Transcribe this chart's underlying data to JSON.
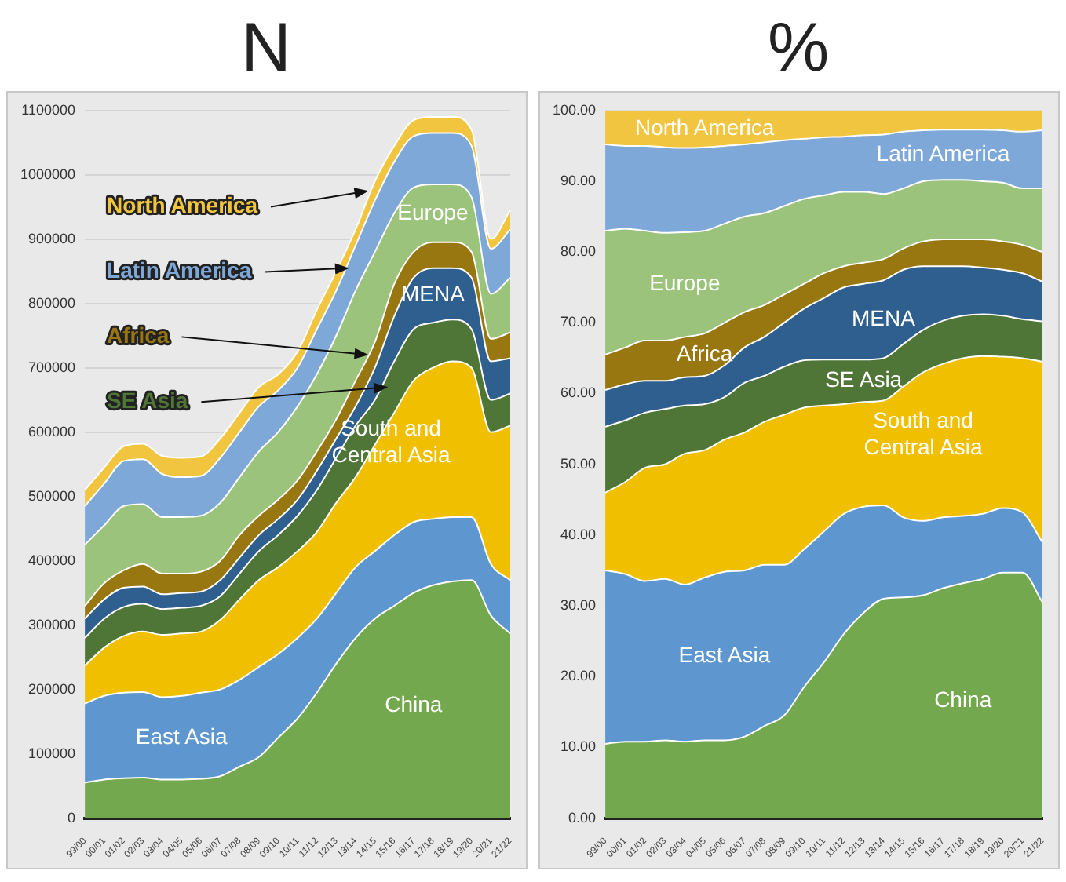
{
  "chart_data": [
    {
      "type": "area",
      "title": "N",
      "stacked": true,
      "grid": "y",
      "categories": [
        "99/00",
        "00/01",
        "01/02",
        "02/03",
        "03/04",
        "04/05",
        "05/06",
        "06/07",
        "07/08",
        "08/09",
        "09/10",
        "10/11",
        "11/12",
        "12/13",
        "13/14",
        "14/15",
        "15/16",
        "16/17",
        "17/18",
        "18/19",
        "19/20",
        "20/21",
        "21/22"
      ],
      "ylim": [
        0,
        1100000
      ],
      "yticks": [
        0,
        100000,
        200000,
        300000,
        400000,
        500000,
        600000,
        700000,
        800000,
        900000,
        1000000,
        1100000
      ],
      "series": [
        {
          "name": "China",
          "color": "#74a84f",
          "values": [
            55000,
            60000,
            62000,
            63000,
            60000,
            60000,
            61000,
            65000,
            80000,
            95000,
            125000,
            155000,
            195000,
            240000,
            280000,
            310000,
            330000,
            350000,
            362000,
            368000,
            370000,
            315000,
            287000
          ]
        },
        {
          "name": "East Asia",
          "color": "#5e97cf",
          "values": [
            123000,
            130000,
            133000,
            133000,
            128000,
            130000,
            134000,
            135000,
            135000,
            140000,
            130000,
            125000,
            115000,
            110000,
            110000,
            105000,
            110000,
            110000,
            103000,
            100000,
            98000,
            80000,
            83000
          ]
        },
        {
          "name": "South and Central Asia",
          "color": "#f0bf00",
          "values": [
            59000,
            75000,
            88000,
            94000,
            97000,
            97000,
            95000,
            108000,
            125000,
            135000,
            135000,
            135000,
            135000,
            140000,
            140000,
            165000,
            190000,
            220000,
            235000,
            242000,
            232000,
            205000,
            240000
          ]
        },
        {
          "name": "SE Asia",
          "color": "#4f7537",
          "values": [
            43000,
            45000,
            45000,
            43000,
            40000,
            40000,
            40000,
            37000,
            40000,
            45000,
            50000,
            55000,
            65000,
            70000,
            80000,
            70000,
            80000,
            80000,
            70000,
            65000,
            60000,
            50000,
            50000
          ]
        },
        {
          "name": "MENA",
          "color": "#2e5f8e",
          "values": [
            30000,
            30000,
            30000,
            27000,
            23000,
            23000,
            22000,
            25000,
            25000,
            25000,
            25000,
            25000,
            30000,
            30000,
            30000,
            50000,
            70000,
            80000,
            85000,
            80000,
            80000,
            60000,
            55000
          ]
        },
        {
          "name": "Africa",
          "color": "#987610",
          "values": [
            20000,
            25000,
            27000,
            35000,
            32000,
            30000,
            31000,
            30000,
            35000,
            30000,
            30000,
            30000,
            30000,
            30000,
            40000,
            40000,
            50000,
            40000,
            40000,
            40000,
            40000,
            35000,
            40000
          ]
        },
        {
          "name": "Europe",
          "color": "#9cc37c",
          "values": [
            95000,
            90000,
            100000,
            93000,
            88000,
            88000,
            87000,
            90000,
            90000,
            100000,
            105000,
            115000,
            120000,
            130000,
            140000,
            140000,
            110000,
            100000,
            90000,
            90000,
            85000,
            70000,
            85000
          ]
        },
        {
          "name": "Latin America",
          "color": "#7ea8d8",
          "values": [
            60000,
            65000,
            70000,
            70000,
            67000,
            62000,
            62000,
            70000,
            70000,
            70000,
            65000,
            60000,
            70000,
            70000,
            70000,
            80000,
            80000,
            80000,
            80000,
            80000,
            80000,
            70000,
            75000
          ]
        },
        {
          "name": "North America",
          "color": "#f2c540",
          "values": [
            25000,
            25000,
            23000,
            24000,
            28000,
            30000,
            30000,
            30000,
            30000,
            30000,
            25000,
            25000,
            30000,
            30000,
            25000,
            30000,
            25000,
            25000,
            25000,
            25000,
            25000,
            15000,
            30000
          ]
        }
      ]
    },
    {
      "type": "area",
      "title": "%",
      "stacked": true,
      "grid": "y",
      "categories": [
        "99/00",
        "00/01",
        "01/02",
        "02/03",
        "03/04",
        "04/05",
        "05/06",
        "06/07",
        "07/08",
        "08/09",
        "09/10",
        "10/11",
        "11/12",
        "12/13",
        "13/14",
        "14/15",
        "15/16",
        "16/17",
        "17/18",
        "18/19",
        "19/20",
        "20/21",
        "21/22"
      ],
      "ylim": [
        0,
        100
      ],
      "yticks": [
        {
          "value": 0,
          "label": "0.00"
        },
        {
          "value": 10,
          "label": "10.00"
        },
        {
          "value": 20,
          "label": "20.00"
        },
        {
          "value": 30,
          "label": "30.00"
        },
        {
          "value": 40,
          "label": "40.00"
        },
        {
          "value": 50,
          "label": "50.00"
        },
        {
          "value": 60,
          "label": "60.00"
        },
        {
          "value": 70,
          "label": "70.00"
        },
        {
          "value": 80,
          "label": "80.00"
        },
        {
          "value": 90,
          "label": "90.00"
        },
        {
          "value": 100,
          "label": "100.00"
        }
      ],
      "series": [
        {
          "name": "China",
          "color": "#74a84f",
          "values": [
            10.5,
            10.8,
            10.8,
            11,
            10.8,
            11,
            11,
            11.5,
            13,
            14.5,
            18.5,
            22,
            26,
            29,
            31,
            31.2,
            31.5,
            32.5,
            33.2,
            33.8,
            34.7,
            34.7,
            30.5
          ]
        },
        {
          "name": "East Asia",
          "color": "#5e97cf",
          "values": [
            24.5,
            23.7,
            22.7,
            22.8,
            22.2,
            23,
            23.8,
            23.5,
            22.8,
            21.3,
            19.5,
            18.5,
            17,
            15,
            13.2,
            11.3,
            10.5,
            10,
            9.5,
            9.2,
            9.1,
            8.5,
            8.5
          ]
        },
        {
          "name": "South and Central Asia",
          "color": "#f0bf00",
          "values": [
            11,
            13,
            16,
            16.2,
            18.5,
            18,
            18.7,
            19.5,
            20.2,
            21.2,
            20,
            17.8,
            15.5,
            14.8,
            14.8,
            18.5,
            21,
            21.7,
            22.3,
            22.3,
            21.4,
            21.8,
            25.5
          ]
        },
        {
          "name": "SE Asia",
          "color": "#4f7537",
          "values": [
            9.3,
            8.7,
            7.8,
            7.8,
            6.8,
            6.5,
            6,
            7,
            6.5,
            6.8,
            6.7,
            6.5,
            6.3,
            6,
            6,
            6,
            6,
            6.1,
            6,
            5.9,
            5.8,
            5.5,
            5.7
          ]
        },
        {
          "name": "MENA",
          "color": "#2e5f8e",
          "values": [
            5.2,
            5.1,
            4.5,
            4,
            4,
            4,
            4.5,
            5,
            5.5,
            6.2,
            7.3,
            8.7,
            10.2,
            10.7,
            11,
            10.5,
            9,
            7.7,
            7,
            6.6,
            6.5,
            6.5,
            5.6
          ]
        },
        {
          "name": "Africa",
          "color": "#987610",
          "values": [
            5,
            5.2,
            5.7,
            5.7,
            5.7,
            6,
            6,
            5,
            4.5,
            4,
            3.5,
            3.5,
            3,
            3,
            3,
            3,
            3.5,
            3.8,
            3.8,
            4,
            4,
            4,
            4.2
          ]
        },
        {
          "name": "Europe",
          "color": "#9cc37c",
          "values": [
            17.5,
            16.8,
            15.5,
            15.2,
            14.8,
            14.5,
            14,
            13.5,
            13,
            12.5,
            12,
            11,
            10.5,
            10,
            9.2,
            8.5,
            8.5,
            8.4,
            8.4,
            8.2,
            8.3,
            8,
            9
          ]
        },
        {
          "name": "Latin America",
          "color": "#7ea8d8",
          "values": [
            12.2,
            11.7,
            12,
            12.1,
            11.9,
            11.8,
            11,
            10.2,
            10,
            9.3,
            8.5,
            8.2,
            7.8,
            8,
            8.4,
            8,
            7.2,
            7.1,
            7.1,
            7.3,
            7.4,
            8,
            8.2
          ]
        },
        {
          "name": "North America",
          "color": "#f2c540",
          "values": [
            4.8,
            5,
            5,
            5.2,
            5.3,
            5.2,
            5,
            4.8,
            4.5,
            4.2,
            4,
            3.8,
            3.7,
            3.5,
            3.4,
            3,
            2.8,
            2.7,
            2.7,
            2.7,
            2.8,
            3,
            2.8
          ]
        }
      ]
    }
  ]
}
